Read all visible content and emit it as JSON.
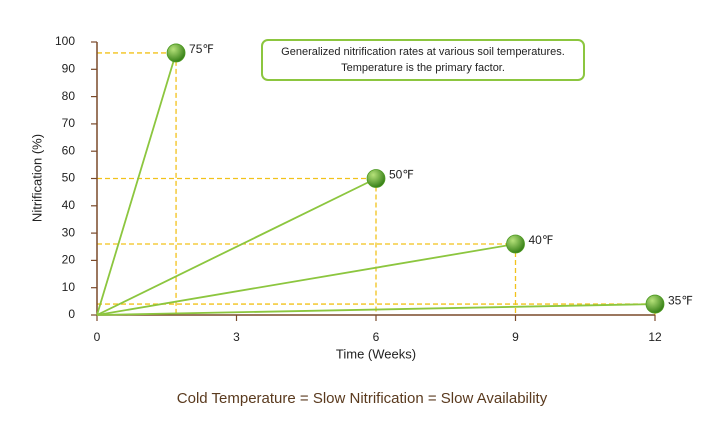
{
  "chart_data": {
    "type": "line",
    "annotation": [
      "Generalized nitrification rates at various soil temperatures.",
      "Temperature is the primary factor."
    ],
    "caption": "Cold Temperature = Slow Nitrification = Slow Availability",
    "xlabel": "Time (Weeks)",
    "ylabel": "Nitrification (%)",
    "xlim": [
      0,
      12
    ],
    "xticks": [
      0,
      3,
      6,
      9,
      12
    ],
    "ylim": [
      0,
      100
    ],
    "yticks": [
      0,
      10,
      20,
      30,
      40,
      50,
      60,
      70,
      80,
      90,
      100
    ],
    "guide_color": "#f2c21b",
    "marker_color": "#4e9a22",
    "series": [
      {
        "name": "75℉",
        "color": "#8cc63f",
        "x": [
          0,
          1.7
        ],
        "values": [
          0,
          96
        ]
      },
      {
        "name": "50℉",
        "color": "#8cc63f",
        "x": [
          0,
          6
        ],
        "values": [
          0,
          50
        ]
      },
      {
        "name": "40℉",
        "color": "#8cc63f",
        "x": [
          0,
          9
        ],
        "values": [
          0,
          26
        ]
      },
      {
        "name": "35℉",
        "color": "#8cc63f",
        "x": [
          0,
          12
        ],
        "values": [
          0,
          4
        ]
      }
    ]
  }
}
